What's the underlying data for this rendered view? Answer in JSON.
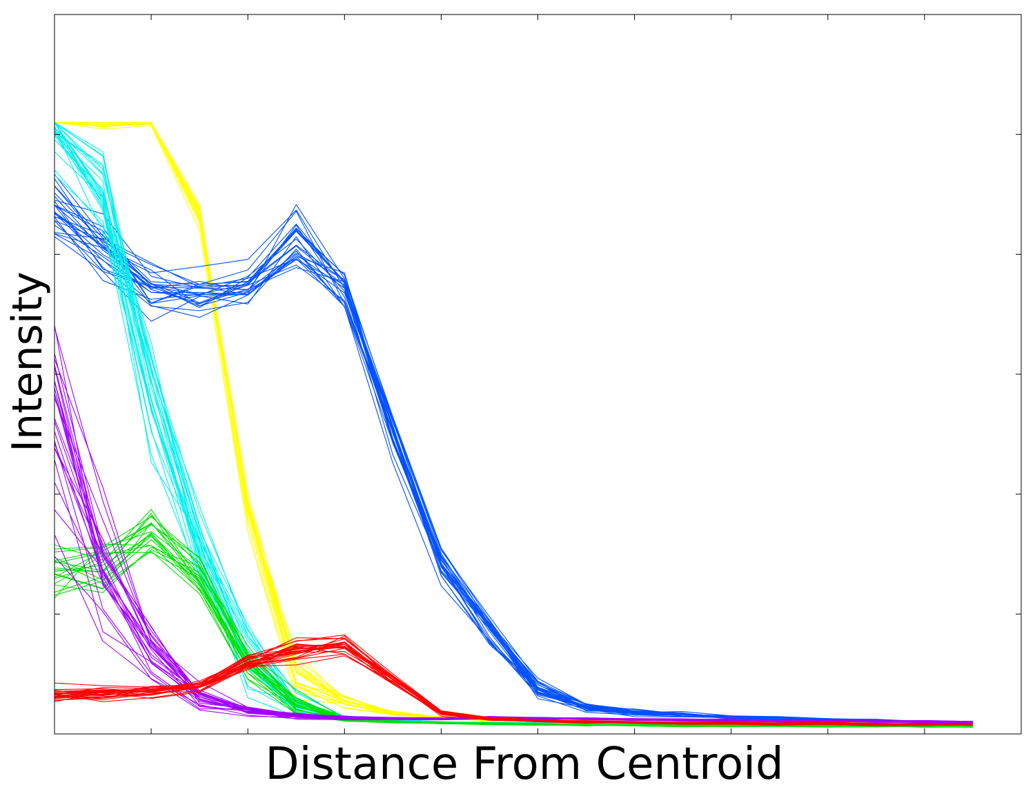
{
  "chart_data": {
    "type": "line",
    "title": "",
    "xlabel": "Distance From Centroid",
    "ylabel": "Intensity",
    "x": [
      0,
      1,
      2,
      3,
      4,
      5,
      6,
      7,
      8,
      9,
      10,
      11,
      12,
      13,
      14,
      15,
      16,
      17,
      18,
      19
    ],
    "xlim": [
      0,
      20
    ],
    "ylim": [
      0,
      1.2
    ],
    "grid": false,
    "legend": "none",
    "tick_labels_shown": false,
    "series": [
      {
        "color": "#ffff00",
        "line_count": 20,
        "spread": [
          0.0,
          0.01,
          0.005,
          0.03,
          0.03,
          0.04,
          0.01,
          0.004,
          0.002,
          0.002,
          0.002,
          0.002,
          0.002,
          0.002,
          0.002,
          0.002,
          0.002,
          0.002,
          0.002,
          0.002
        ],
        "values": [
          1.02,
          1.02,
          1.02,
          0.87,
          0.38,
          0.1,
          0.055,
          0.035,
          0.027,
          0.024,
          0.022,
          0.021,
          0.02,
          0.02,
          0.02,
          0.019,
          0.018,
          0.018,
          0.018,
          0.017
        ]
      },
      {
        "color": "#0050ff",
        "line_count": 25,
        "spread": [
          0.07,
          0.06,
          0.05,
          0.04,
          0.04,
          0.06,
          0.05,
          0.04,
          0.04,
          0.03,
          0.02,
          0.01,
          0.006,
          0.004,
          0.003,
          0.003,
          0.002,
          0.002,
          0.002,
          0.002
        ],
        "values": [
          0.87,
          0.8,
          0.75,
          0.73,
          0.74,
          0.83,
          0.74,
          0.5,
          0.28,
          0.17,
          0.075,
          0.045,
          0.035,
          0.032,
          0.028,
          0.026,
          0.024,
          0.022,
          0.02,
          0.019
        ]
      },
      {
        "color": "#00f0f0",
        "line_count": 25,
        "spread": [
          0.1,
          0.08,
          0.12,
          0.08,
          0.05,
          0.02,
          0.005,
          0.003,
          0.002,
          0.002,
          0.002,
          0.002,
          0.002,
          0.002,
          0.002,
          0.002,
          0.002,
          0.002,
          0.002,
          0.002
        ],
        "values": [
          1.0,
          0.9,
          0.55,
          0.3,
          0.12,
          0.045,
          0.027,
          0.022,
          0.019,
          0.018,
          0.017,
          0.016,
          0.016,
          0.015,
          0.015,
          0.014,
          0.014,
          0.014,
          0.013,
          0.013
        ]
      },
      {
        "color": "#00e000",
        "line_count": 20,
        "spread": [
          0.06,
          0.06,
          0.05,
          0.05,
          0.04,
          0.02,
          0.005,
          0.003,
          0.002,
          0.002,
          0.002,
          0.002,
          0.002,
          0.002,
          0.002,
          0.002,
          0.002,
          0.002,
          0.002,
          0.002
        ],
        "values": [
          0.27,
          0.28,
          0.34,
          0.27,
          0.12,
          0.05,
          0.025,
          0.02,
          0.018,
          0.017,
          0.016,
          0.015,
          0.015,
          0.014,
          0.014,
          0.014,
          0.013,
          0.013,
          0.013,
          0.013
        ]
      },
      {
        "color": "#a000ff",
        "line_count": 25,
        "spread": [
          0.22,
          0.13,
          0.05,
          0.02,
          0.008,
          0.005,
          0.003,
          0.002,
          0.002,
          0.002,
          0.002,
          0.002,
          0.002,
          0.002,
          0.002,
          0.002,
          0.002,
          0.002,
          0.002,
          0.002
        ],
        "values": [
          0.55,
          0.3,
          0.14,
          0.06,
          0.04,
          0.03,
          0.027,
          0.026,
          0.025,
          0.027,
          0.026,
          0.025,
          0.024,
          0.023,
          0.023,
          0.022,
          0.022,
          0.021,
          0.021,
          0.02
        ]
      },
      {
        "color": "#ff0000",
        "line_count": 25,
        "spread": [
          0.015,
          0.012,
          0.01,
          0.01,
          0.015,
          0.02,
          0.02,
          0.01,
          0.004,
          0.002,
          0.002,
          0.002,
          0.002,
          0.002,
          0.002,
          0.002,
          0.002,
          0.002,
          0.002,
          0.002
        ],
        "values": [
          0.065,
          0.068,
          0.07,
          0.08,
          0.12,
          0.14,
          0.145,
          0.09,
          0.035,
          0.025,
          0.022,
          0.02,
          0.019,
          0.018,
          0.018,
          0.017,
          0.017,
          0.016,
          0.016,
          0.016
        ]
      }
    ]
  }
}
